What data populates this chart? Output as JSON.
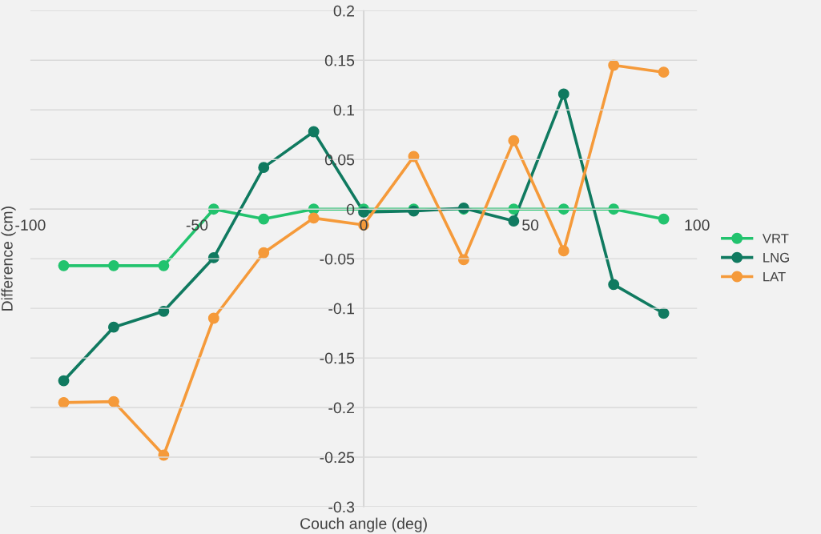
{
  "chart_data": {
    "type": "line",
    "xlabel": "Couch angle (deg)",
    "ylabel": "Difference (cm)",
    "x": [
      -90,
      -75,
      -60,
      -45,
      -30,
      -15,
      0,
      15,
      30,
      45,
      60,
      75,
      90
    ],
    "series": [
      {
        "name": "VRT",
        "color": "#22c36e",
        "values": [
          -0.057,
          -0.057,
          -0.057,
          0,
          -0.01,
          0,
          0,
          0,
          0,
          0,
          0,
          0,
          -0.01
        ]
      },
      {
        "name": "LNG",
        "color": "#107a60",
        "values": [
          -0.173,
          -0.119,
          -0.103,
          -0.049,
          0.042,
          0.078,
          -0.003,
          -0.002,
          0.001,
          -0.012,
          0.116,
          -0.076,
          -0.105
        ]
      },
      {
        "name": "LAT",
        "color": "#f59a3a",
        "values": [
          -0.195,
          -0.194,
          -0.248,
          -0.11,
          -0.044,
          -0.009,
          -0.016,
          0.053,
          -0.051,
          0.069,
          -0.042,
          0.145,
          0.138
        ]
      }
    ],
    "xlim": [
      -100,
      100
    ],
    "xticks": [
      -100,
      -50,
      0,
      50,
      100
    ],
    "ylim": [
      -0.3,
      0.2
    ],
    "yticks": [
      -0.3,
      -0.25,
      -0.2,
      -0.15,
      -0.1,
      -0.05,
      0,
      0.05,
      0.1,
      0.15,
      0.2
    ],
    "grid": "y",
    "legend": "right",
    "marker": "circle",
    "line_style": "solid"
  }
}
